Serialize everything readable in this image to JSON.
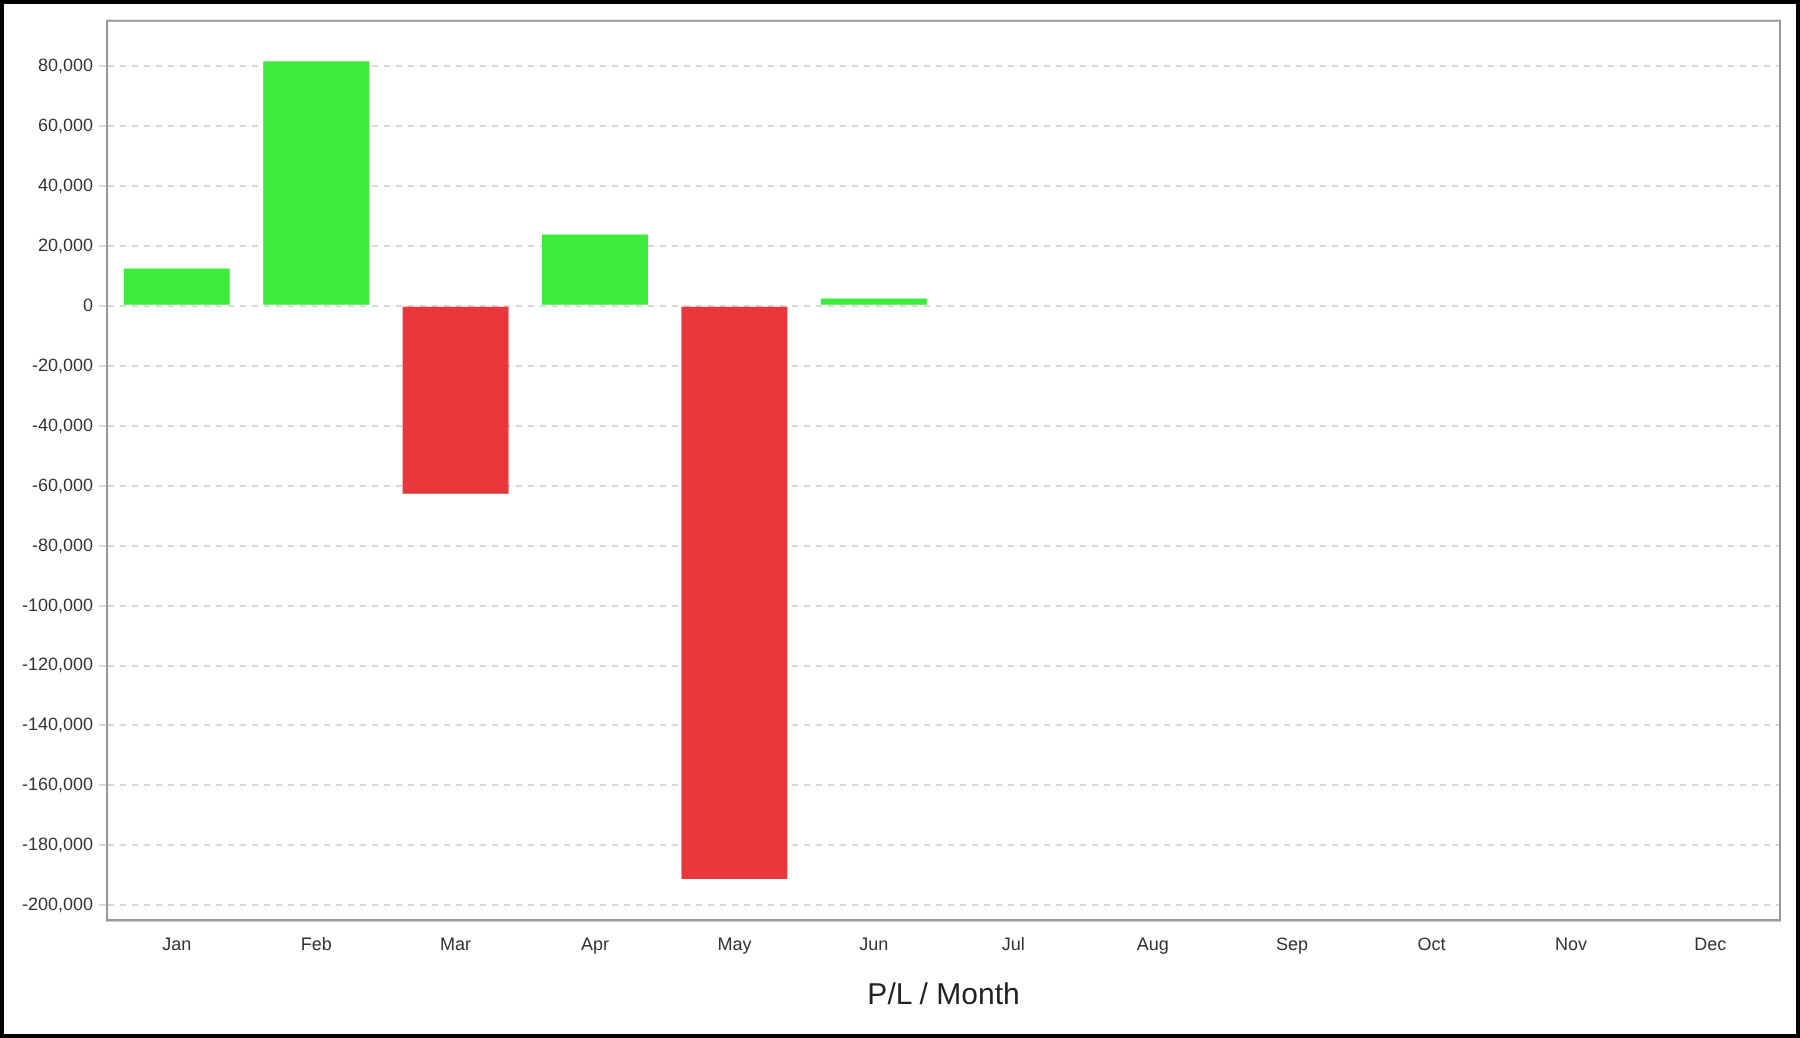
{
  "chart_data": {
    "type": "bar",
    "xlabel": "P/L / Month",
    "categories": [
      "Jan",
      "Feb",
      "Mar",
      "Apr",
      "May",
      "Jun",
      "Jul",
      "Aug",
      "Sep",
      "Oct",
      "Nov",
      "Dec"
    ],
    "values": [
      12400,
      81500,
      -62700,
      23700,
      -191200,
      2400,
      null,
      null,
      null,
      null,
      null,
      null
    ],
    "colors": [
      "#3deb3d",
      "#3deb3d",
      "#e8383c",
      "#3deb3d",
      "#e8383c",
      "#3deb3d",
      null,
      null,
      null,
      null,
      null,
      null
    ],
    "ylim": [
      -205000,
      95000
    ],
    "yticks": [
      {
        "value": -200000,
        "label": "-200,000"
      },
      {
        "value": -180000,
        "label": "-180,000"
      },
      {
        "value": -160000,
        "label": "-160,000"
      },
      {
        "value": -140000,
        "label": "-140,000"
      },
      {
        "value": -120000,
        "label": "-120,000"
      },
      {
        "value": -100000,
        "label": "-100,000"
      },
      {
        "value": -80000,
        "label": "-80,000"
      },
      {
        "value": -60000,
        "label": "-60,000"
      },
      {
        "value": -40000,
        "label": "-40,000"
      },
      {
        "value": -20000,
        "label": "-20,000"
      },
      0,
      {
        "value": 20000,
        "label": "20,000"
      },
      {
        "value": 40000,
        "label": "40,000"
      },
      {
        "value": 60000,
        "label": "60,000"
      },
      {
        "value": 80000,
        "label": "80,000"
      }
    ],
    "grid": "y",
    "legend": false
  }
}
